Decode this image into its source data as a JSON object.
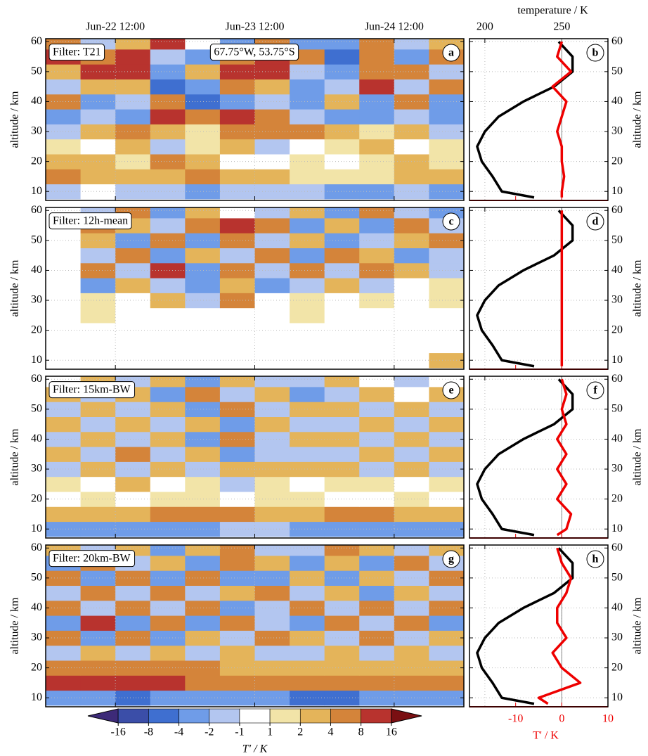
{
  "chart_data": [
    {
      "type": "heatmap",
      "panel": "a",
      "annotation": "Filter: T21",
      "location": "67.75°W, 53.75°S",
      "ylabel": "altitude / km",
      "xlim": [
        0,
        72
      ],
      "xticks": [
        {
          "value": 12,
          "label": "Jun-22 12:00"
        },
        {
          "value": 36,
          "label": "Jun-23 12:00"
        },
        {
          "value": 60,
          "label": "Jun-24 12:00"
        }
      ],
      "ylim": [
        7,
        61
      ],
      "yticks": [
        10,
        20,
        30,
        40,
        50,
        60
      ],
      "x": [
        3,
        9,
        15,
        21,
        27,
        33,
        39,
        45,
        51,
        57,
        63,
        69
      ],
      "y": [
        10,
        15,
        20,
        25,
        30,
        35,
        40,
        45,
        50,
        55,
        60
      ],
      "z": [
        [
          -2,
          -1,
          -2,
          -2,
          -4,
          -2,
          -2,
          -2,
          -4,
          -4,
          -2,
          -4
        ],
        [
          4,
          2,
          2,
          2,
          4,
          2,
          2,
          1,
          1,
          1,
          2,
          2
        ],
        [
          2,
          2,
          1,
          4,
          2,
          -1,
          -1,
          1,
          -1,
          1,
          2,
          1
        ],
        [
          1,
          -1,
          2,
          -2,
          1,
          2,
          -2,
          -1,
          1,
          2,
          -1,
          1
        ],
        [
          -2,
          2,
          4,
          2,
          1,
          4,
          4,
          4,
          2,
          1,
          2,
          -2
        ],
        [
          -4,
          -2,
          -4,
          8,
          4,
          8,
          4,
          -2,
          -4,
          -4,
          -2,
          -4
        ],
        [
          4,
          -4,
          -2,
          4,
          -8,
          -4,
          -2,
          -4,
          2,
          -4,
          4,
          -4
        ],
        [
          -2,
          2,
          2,
          -8,
          -4,
          4,
          2,
          -4,
          -2,
          8,
          -2,
          4
        ],
        [
          2,
          8,
          8,
          -4,
          2,
          8,
          8,
          -2,
          -4,
          4,
          4,
          -2
        ],
        [
          8,
          4,
          8,
          -2,
          -4,
          4,
          8,
          4,
          -8,
          4,
          -4,
          4
        ],
        [
          4,
          -2,
          2,
          8,
          -1,
          -4,
          4,
          -4,
          -4,
          4,
          -2,
          2
        ]
      ]
    },
    {
      "type": "profile",
      "panel": "b",
      "ylabel": "altitude / km",
      "ylim": [
        7,
        61
      ],
      "yticks": [
        10,
        20,
        30,
        40,
        50,
        60
      ],
      "xlim": [
        190,
        280
      ],
      "xticks": [
        200,
        250
      ],
      "xlabel": "temperature / K",
      "x2lim": [
        -20,
        10
      ],
      "y": [
        8,
        10,
        15,
        20,
        25,
        30,
        35,
        40,
        45,
        50,
        55,
        60
      ],
      "series": [
        {
          "color": "#000000",
          "values": [
            232,
            211,
            205,
            198,
            195,
            200,
            209,
            225,
            245,
            257,
            257,
            248
          ]
        },
        {
          "color": "#ee0000",
          "axis": "x2",
          "values": [
            0,
            0,
            0.5,
            0,
            0,
            -1,
            0,
            1,
            -2,
            2,
            -1,
            0
          ]
        }
      ]
    },
    {
      "type": "heatmap",
      "panel": "c",
      "annotation": "Filter: 12h-mean",
      "ylabel": "altitude / km",
      "xlim": [
        0,
        72
      ],
      "ylim": [
        7,
        61
      ],
      "yticks": [
        10,
        20,
        30,
        40,
        50,
        60
      ],
      "x": [
        3,
        9,
        15,
        21,
        27,
        33,
        39,
        45,
        51,
        57,
        63,
        69
      ],
      "y": [
        10,
        15,
        20,
        25,
        30,
        35,
        40,
        45,
        50,
        55,
        60
      ],
      "z": [
        [
          null,
          0,
          0,
          0,
          0,
          0,
          0,
          0,
          0,
          0,
          0,
          2
        ],
        [
          null,
          0,
          0,
          0,
          0,
          0,
          0,
          0,
          0,
          0,
          0,
          0
        ],
        [
          null,
          0,
          0,
          0,
          -1,
          0,
          0,
          0,
          0,
          0,
          0,
          -1
        ],
        [
          null,
          1,
          0,
          -1,
          0,
          -1,
          0,
          1,
          -1,
          -1,
          0,
          0
        ],
        [
          null,
          1,
          -1,
          2,
          -2,
          4,
          -1,
          1,
          -1,
          1,
          -1,
          1
        ],
        [
          null,
          -4,
          2,
          -2,
          -4,
          2,
          -4,
          -2,
          2,
          -2,
          -1,
          1
        ],
        [
          null,
          4,
          -2,
          8,
          -4,
          4,
          -2,
          4,
          -2,
          4,
          2,
          -2
        ],
        [
          null,
          -2,
          4,
          -4,
          2,
          -2,
          4,
          -4,
          4,
          2,
          -4,
          -2
        ],
        [
          null,
          2,
          -4,
          4,
          -4,
          4,
          -2,
          2,
          -4,
          -2,
          2,
          4
        ],
        [
          null,
          4,
          2,
          -2,
          4,
          8,
          4,
          -4,
          2,
          -4,
          4,
          -2
        ],
        [
          null,
          -2,
          4,
          -4,
          2,
          -1,
          -2,
          2,
          -4,
          4,
          -2,
          -4
        ]
      ]
    },
    {
      "type": "profile",
      "panel": "d",
      "ylabel": "altitude / km",
      "ylim": [
        7,
        61
      ],
      "yticks": [
        10,
        20,
        30,
        40,
        50,
        60
      ],
      "xlim": [
        190,
        280
      ],
      "x2lim": [
        -20,
        10
      ],
      "y": [
        8,
        10,
        15,
        20,
        25,
        30,
        35,
        40,
        45,
        50,
        55,
        60
      ],
      "series": [
        {
          "color": "#000000",
          "values": [
            232,
            211,
            205,
            198,
            195,
            200,
            209,
            225,
            245,
            257,
            257,
            248
          ]
        },
        {
          "color": "#ee0000",
          "axis": "x2",
          "values": [
            0,
            0,
            0,
            0,
            0,
            0,
            0,
            0,
            0,
            0,
            0,
            0
          ]
        }
      ]
    },
    {
      "type": "heatmap",
      "panel": "e",
      "annotation": "Filter: 15km-BW",
      "ylabel": "altitude / km",
      "xlim": [
        0,
        72
      ],
      "ylim": [
        7,
        61
      ],
      "yticks": [
        10,
        20,
        30,
        40,
        50,
        60
      ],
      "x": [
        3,
        9,
        15,
        21,
        27,
        33,
        39,
        45,
        51,
        57,
        63,
        69
      ],
      "y": [
        10,
        15,
        20,
        25,
        30,
        35,
        40,
        45,
        50,
        55,
        60
      ],
      "z": [
        [
          -4,
          -4,
          -4,
          -4,
          -4,
          -2,
          -2,
          -4,
          -4,
          -4,
          -4,
          -4
        ],
        [
          2,
          2,
          2,
          4,
          4,
          4,
          2,
          2,
          4,
          4,
          2,
          2
        ],
        [
          -1,
          1,
          -1,
          1,
          1,
          -1,
          1,
          1,
          -1,
          0,
          1,
          -1
        ],
        [
          1,
          -1,
          2,
          -1,
          1,
          -2,
          1,
          -1,
          1,
          1,
          -1,
          1
        ],
        [
          -2,
          2,
          -2,
          2,
          -2,
          2,
          2,
          2,
          2,
          -2,
          2,
          -2
        ],
        [
          2,
          -2,
          4,
          -2,
          2,
          -4,
          -2,
          -2,
          -2,
          2,
          -2,
          2
        ],
        [
          -2,
          2,
          -2,
          2,
          -4,
          4,
          -2,
          2,
          2,
          -2,
          2,
          -2
        ],
        [
          2,
          -2,
          2,
          -2,
          2,
          -4,
          2,
          -2,
          -2,
          2,
          -2,
          2
        ],
        [
          -2,
          2,
          -2,
          2,
          -4,
          4,
          -2,
          2,
          2,
          -2,
          2,
          -2
        ],
        [
          2,
          -2,
          2,
          -4,
          4,
          -2,
          2,
          -4,
          -2,
          2,
          -1,
          2
        ],
        [
          -1,
          2,
          -2,
          2,
          -4,
          2,
          -2,
          -2,
          2,
          -1,
          -2,
          -1
        ]
      ]
    },
    {
      "type": "profile",
      "panel": "f",
      "ylabel": "altitude / km",
      "ylim": [
        7,
        61
      ],
      "yticks": [
        10,
        20,
        30,
        40,
        50,
        60
      ],
      "xlim": [
        190,
        280
      ],
      "x2lim": [
        -20,
        10
      ],
      "y": [
        8,
        10,
        15,
        20,
        25,
        30,
        35,
        40,
        45,
        50,
        55,
        60
      ],
      "series": [
        {
          "color": "#000000",
          "values": [
            232,
            211,
            205,
            198,
            195,
            200,
            209,
            225,
            245,
            257,
            257,
            248
          ]
        },
        {
          "color": "#ee0000",
          "axis": "x2",
          "values": [
            -1,
            1,
            2,
            -1,
            1,
            -1,
            1,
            -1,
            1,
            0,
            1,
            0
          ]
        }
      ]
    },
    {
      "type": "heatmap",
      "panel": "g",
      "annotation": "Filter: 20km-BW",
      "ylabel": "altitude / km",
      "xlim": [
        0,
        72
      ],
      "ylim": [
        7,
        61
      ],
      "yticks": [
        10,
        20,
        30,
        40,
        50,
        60
      ],
      "x": [
        3,
        9,
        15,
        21,
        27,
        33,
        39,
        45,
        51,
        57,
        63,
        69
      ],
      "y": [
        10,
        15,
        20,
        25,
        30,
        35,
        40,
        45,
        50,
        55,
        60
      ],
      "z": [
        [
          -4,
          -4,
          -8,
          -4,
          -4,
          -4,
          -4,
          -8,
          -8,
          -4,
          -4,
          -4
        ],
        [
          8,
          8,
          8,
          8,
          4,
          4,
          4,
          4,
          4,
          4,
          4,
          4
        ],
        [
          4,
          4,
          4,
          4,
          4,
          2,
          2,
          2,
          2,
          2,
          2,
          2
        ],
        [
          -2,
          2,
          -2,
          2,
          -2,
          2,
          -2,
          -2,
          2,
          -2,
          2,
          -2
        ],
        [
          4,
          -4,
          4,
          -4,
          2,
          -2,
          4,
          2,
          -2,
          4,
          -2,
          2
        ],
        [
          -4,
          8,
          -4,
          4,
          -4,
          4,
          -2,
          -4,
          4,
          -2,
          4,
          -4
        ],
        [
          4,
          -2,
          4,
          -2,
          4,
          -4,
          -2,
          4,
          -2,
          4,
          -2,
          4
        ],
        [
          -2,
          4,
          -2,
          4,
          -2,
          2,
          4,
          -2,
          2,
          -4,
          2,
          -2
        ],
        [
          4,
          -4,
          4,
          -4,
          4,
          -4,
          -4,
          2,
          -4,
          2,
          -2,
          4
        ],
        [
          -4,
          4,
          -2,
          2,
          -4,
          4,
          2,
          -4,
          2,
          -4,
          4,
          -2
        ],
        [
          2,
          -2,
          2,
          -4,
          2,
          4,
          -2,
          -2,
          4,
          2,
          -2,
          2
        ]
      ]
    },
    {
      "type": "profile",
      "panel": "h",
      "ylabel": "altitude / km",
      "ylim": [
        7,
        61
      ],
      "yticks": [
        10,
        20,
        30,
        40,
        50,
        60
      ],
      "xlim": [
        190,
        280
      ],
      "x2lim": [
        -20,
        10
      ],
      "x2ticks": [
        -10,
        0,
        10
      ],
      "x2label": "T' / K",
      "y": [
        8,
        10,
        15,
        20,
        25,
        30,
        35,
        40,
        45,
        50,
        55,
        60
      ],
      "series": [
        {
          "color": "#000000",
          "values": [
            232,
            211,
            205,
            198,
            195,
            200,
            209,
            225,
            245,
            257,
            257,
            248
          ]
        },
        {
          "color": "#ee0000",
          "axis": "x2",
          "values": [
            -3,
            -5,
            4,
            0,
            -2,
            1,
            -1,
            -1,
            1,
            2,
            0,
            -1
          ]
        }
      ]
    },
    {
      "type": "colorbar",
      "label": "T′ / K",
      "levels": [
        -16,
        -8,
        -4,
        -2,
        -1,
        1,
        2,
        4,
        8,
        16
      ],
      "colors": [
        "#3d2a78",
        "#3b4ea8",
        "#3f6fd0",
        "#6f9ce8",
        "#b3c6f0",
        "#ffffff",
        "#f2e4a8",
        "#e4b45a",
        "#d4843a",
        "#b8332e",
        "#7a0f12"
      ]
    }
  ]
}
